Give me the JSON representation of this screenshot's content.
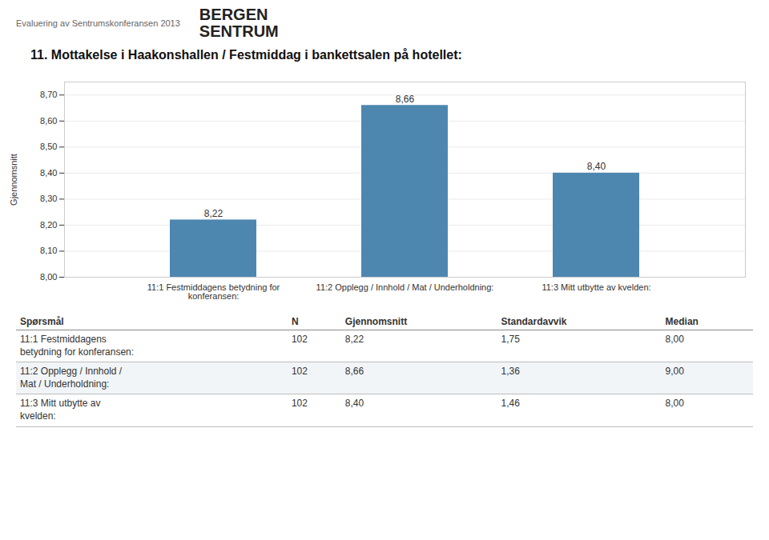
{
  "chart_data": {
    "type": "bar",
    "title": "11. Mottakelse i Haakonshallen / Festmiddag i bankettsalen på hotellet:",
    "annotations": [
      "Evaluering av Sentrumskonferansen 2013",
      "BERGEN",
      "SENTRUM"
    ],
    "categories": [
      "11:1 Festmiddagens betydning for\nkonferansen:",
      "11:2 Opplegg / Innhold / Mat / Underholdning:",
      "11:3 Mitt utbytte av kvelden:"
    ],
    "values": [
      8.22,
      8.66,
      8.4
    ],
    "value_labels": [
      "8,22",
      "8,66",
      "8,40"
    ],
    "data_labels": true,
    "color": "#4d87b0",
    "ylabel": "Gjennomsnitt",
    "ylim": [
      8.0,
      8.75
    ],
    "yticks": [
      {
        "value": 8.0,
        "label": "8,00"
      },
      {
        "value": 8.1,
        "label": "8,10"
      },
      {
        "value": 8.2,
        "label": "8,20"
      },
      {
        "value": 8.3,
        "label": "8,30"
      },
      {
        "value": 8.4,
        "label": "8,40"
      },
      {
        "value": 8.5,
        "label": "8,50"
      },
      {
        "value": 8.6,
        "label": "8,60"
      },
      {
        "value": 8.7,
        "label": "8,70"
      }
    ],
    "grid": true,
    "table": {
      "headers": [
        "Spørsmål",
        "N",
        "Gjennomsnitt",
        "Standardavvik",
        "Median"
      ],
      "rows": [
        [
          "11:1 Festmiddagens\nbetydning for konferansen:",
          "102",
          "8,22",
          "1,75",
          "8,00"
        ],
        [
          "11:2 Opplegg / Innhold /\nMat / Underholdning:",
          "102",
          "8,66",
          "1,36",
          "9,00"
        ],
        [
          "11:3 Mitt utbytte av\nkvelden:",
          "102",
          "8,40",
          "1,46",
          "8,00"
        ]
      ]
    }
  }
}
